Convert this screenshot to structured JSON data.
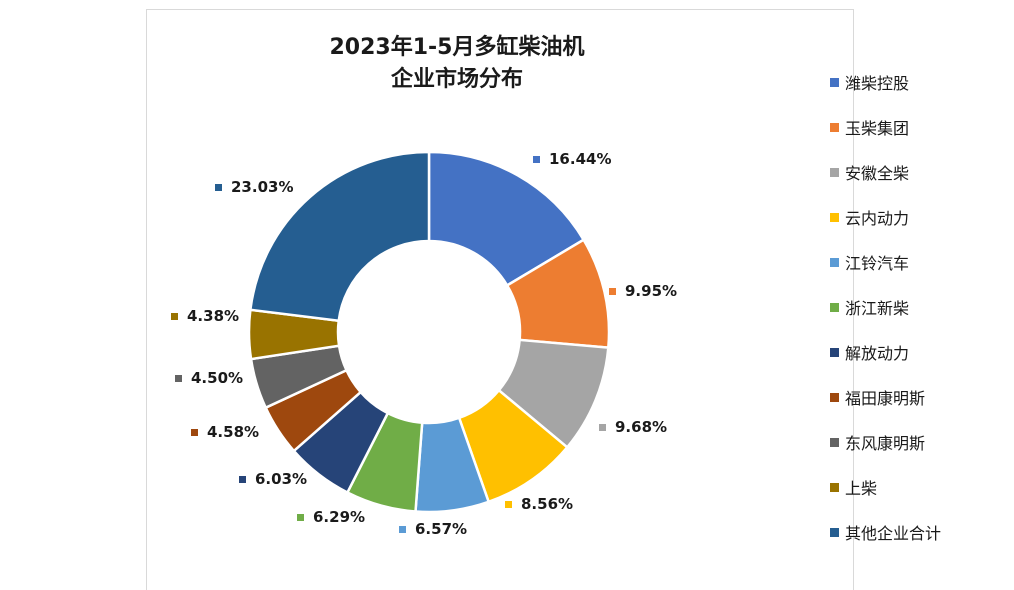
{
  "chart_data": {
    "type": "pie",
    "title_lines": [
      "2023年1-5月多缸柴油机",
      "企业市场分布"
    ],
    "donut": true,
    "categories": [
      "潍柴控股",
      "玉柴集团",
      "安徽全柴",
      "云内动力",
      "江铃汽车",
      "浙江新柴",
      "解放动力",
      "福田康明斯",
      "东风康明斯",
      "上柴",
      "其他企业合计"
    ],
    "values": [
      16.44,
      9.95,
      9.68,
      8.56,
      6.57,
      6.29,
      6.03,
      4.58,
      4.5,
      4.38,
      23.03
    ],
    "value_labels": [
      "16.44%",
      "9.95%",
      "9.68%",
      "8.56%",
      "6.57%",
      "6.29%",
      "6.03%",
      "4.58%",
      "4.50%",
      "4.38%",
      "23.03%"
    ],
    "colors": [
      "#4472C4",
      "#ED7D31",
      "#A5A5A5",
      "#FFC000",
      "#5B9BD5",
      "#70AD47",
      "#264478",
      "#9E480E",
      "#636363",
      "#997300",
      "#255E91"
    ],
    "legend_position": "right"
  }
}
